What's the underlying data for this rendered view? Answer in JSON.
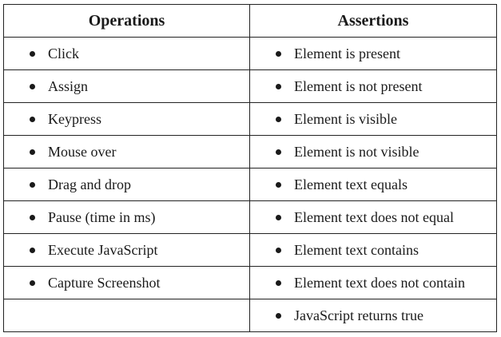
{
  "headers": {
    "operations": "Operations",
    "assertions": "Assertions"
  },
  "rows": [
    {
      "operation": "Click",
      "assertion": "Element is present"
    },
    {
      "operation": "Assign",
      "assertion": "Element is not present"
    },
    {
      "operation": "Keypress",
      "assertion": "Element is visible"
    },
    {
      "operation": "Mouse over",
      "assertion": "Element is not visible"
    },
    {
      "operation": "Drag and drop",
      "assertion": "Element text equals"
    },
    {
      "operation": "Pause (time in ms)",
      "assertion": "Element text does not equal"
    },
    {
      "operation": "Execute JavaScript",
      "assertion": "Element text contains"
    },
    {
      "operation": "Capture Screenshot",
      "assertion": "Element text does not contain"
    },
    {
      "operation": "",
      "assertion": "JavaScript returns true"
    }
  ]
}
